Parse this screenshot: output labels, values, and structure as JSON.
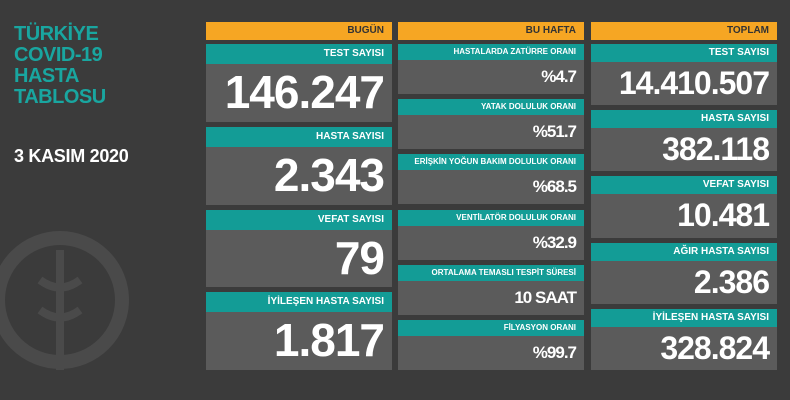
{
  "title": [
    "TÜRKİYE",
    "COVID-19",
    "HASTA",
    "TABLOSU"
  ],
  "date": "3 KASIM 2020",
  "columns": [
    {
      "header": "BUGÜN",
      "items": [
        {
          "label": "TEST SAYISI",
          "value": "146.247"
        },
        {
          "label": "HASTA SAYISI",
          "value": "2.343"
        },
        {
          "label": "VEFAT SAYISI",
          "value": "79"
        },
        {
          "label": "İYİLEŞEN HASTA SAYISI",
          "value": "1.817"
        }
      ]
    },
    {
      "header": "BU HAFTA",
      "items": [
        {
          "label": "HASTALARDA ZATÜRRE ORANI",
          "value": "%4.7"
        },
        {
          "label": "YATAK DOLULUK ORANI",
          "value": "%51.7"
        },
        {
          "label": "ERİŞKİN YOĞUN BAKIM DOLULUK ORANI",
          "value": "%68.5"
        },
        {
          "label": "VENTİLATÖR DOLULUK ORANI",
          "value": "%32.9"
        },
        {
          "label": "ORTALAMA TEMASLI TESPİT SÜRESİ",
          "value": "10 SAAT"
        },
        {
          "label": "FİLYASYON ORANI",
          "value": "%99.7"
        }
      ]
    },
    {
      "header": "TOPLAM",
      "items": [
        {
          "label": "TEST SAYISI",
          "value": "14.410.507"
        },
        {
          "label": "HASTA SAYISI",
          "value": "382.118"
        },
        {
          "label": "VEFAT SAYISI",
          "value": "10.481"
        },
        {
          "label": "AĞIR HASTA SAYISI",
          "value": "2.386"
        },
        {
          "label": "İYİLEŞEN HASTA SAYISI",
          "value": "328.824"
        }
      ]
    }
  ]
}
